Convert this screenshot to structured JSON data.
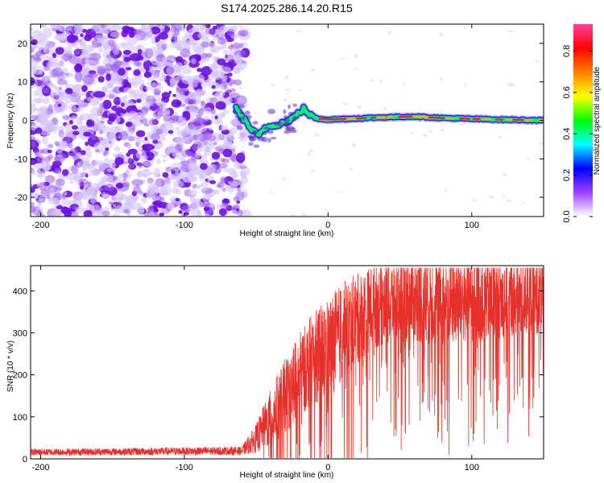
{
  "title": "S174.2025.286.14.20.R15",
  "chart_data": [
    {
      "type": "heatmap",
      "name": "spectrogram",
      "xlabel": "Height of straight line (km)",
      "ylabel": "Frequency (Hz)",
      "xlim": [
        -207,
        150
      ],
      "ylim": [
        -25,
        25
      ],
      "x_ticks": [
        {
          "value": -200,
          "label": "-200"
        },
        {
          "value": -100,
          "label": "-100"
        },
        {
          "value": 0,
          "label": "0"
        },
        {
          "value": 100,
          "label": "100"
        }
      ],
      "y_ticks": [
        {
          "value": 20,
          "label": "20"
        },
        {
          "value": 10,
          "label": "10"
        },
        {
          "value": 0,
          "label": "0"
        },
        {
          "value": -10,
          "label": "-10"
        },
        {
          "value": -20,
          "label": "-20"
        }
      ],
      "noise_region_x": [
        -207,
        -62
      ],
      "signal_track": [
        {
          "x": -64,
          "y": 3.0
        },
        {
          "x": -60,
          "y": 1.0
        },
        {
          "x": -56,
          "y": -1.0
        },
        {
          "x": -52,
          "y": -3.0
        },
        {
          "x": -48,
          "y": -4.0
        },
        {
          "x": -44,
          "y": -2.0
        },
        {
          "x": -40,
          "y": -1.5
        },
        {
          "x": -36,
          "y": -1.0
        },
        {
          "x": -30,
          "y": -0.5
        },
        {
          "x": -25,
          "y": 0.5
        },
        {
          "x": -20,
          "y": 2.0
        },
        {
          "x": -17,
          "y": 3.0
        },
        {
          "x": -13,
          "y": 1.5
        },
        {
          "x": -8,
          "y": 0.5
        },
        {
          "x": 0,
          "y": 0.2
        },
        {
          "x": 20,
          "y": 0.5
        },
        {
          "x": 40,
          "y": 0.8
        },
        {
          "x": 60,
          "y": 1.0
        },
        {
          "x": 80,
          "y": 0.6
        },
        {
          "x": 100,
          "y": 0.4
        },
        {
          "x": 120,
          "y": 0.2
        },
        {
          "x": 150,
          "y": 0.0
        }
      ],
      "colorbar": {
        "label": "Normalized spectral amplitude",
        "range": [
          0,
          0.93
        ],
        "ticks": [
          {
            "value": 0.0,
            "label": "0.0"
          },
          {
            "value": 0.2,
            "label": "0.2"
          },
          {
            "value": 0.4,
            "label": "0.4"
          },
          {
            "value": 0.6,
            "label": "0.6"
          },
          {
            "value": 0.8,
            "label": "0.8"
          }
        ],
        "stops": [
          "#ffffff",
          "#a040ff",
          "#0000ff",
          "#00ffff",
          "#00ff00",
          "#ffff00",
          "#ff8000",
          "#ff0000",
          "#ff40a0"
        ]
      }
    },
    {
      "type": "line",
      "name": "snr",
      "xlabel": "Height of straight line (km)",
      "ylabel": "SNR (10 * v/v)",
      "xlim": [
        -207,
        150
      ],
      "ylim": [
        0,
        460
      ],
      "color": "#e8302a",
      "x_ticks": [
        {
          "value": -200,
          "label": "-200"
        },
        {
          "value": -100,
          "label": "-100"
        },
        {
          "value": 0,
          "label": "0"
        },
        {
          "value": 100,
          "label": "100"
        }
      ],
      "y_ticks": [
        {
          "value": 0,
          "label": "0"
        },
        {
          "value": 100,
          "label": "100"
        },
        {
          "value": 200,
          "label": "200"
        },
        {
          "value": 300,
          "label": "300"
        },
        {
          "value": 400,
          "label": "400"
        }
      ],
      "envelope": [
        {
          "x": -207,
          "mean": 15,
          "amp": 8
        },
        {
          "x": -60,
          "mean": 18,
          "amp": 10
        },
        {
          "x": -50,
          "mean": 45,
          "amp": 35
        },
        {
          "x": -40,
          "mean": 90,
          "amp": 70
        },
        {
          "x": -30,
          "mean": 140,
          "amp": 90
        },
        {
          "x": -20,
          "mean": 190,
          "amp": 100
        },
        {
          "x": -10,
          "mean": 230,
          "amp": 110
        },
        {
          "x": 0,
          "mean": 250,
          "amp": 120
        },
        {
          "x": 10,
          "mean": 290,
          "amp": 120
        },
        {
          "x": 20,
          "mean": 320,
          "amp": 110
        },
        {
          "x": 30,
          "mean": 350,
          "amp": 100
        },
        {
          "x": 50,
          "mean": 370,
          "amp": 100
        },
        {
          "x": 80,
          "mean": 365,
          "amp": 110
        },
        {
          "x": 110,
          "mean": 370,
          "amp": 100
        },
        {
          "x": 150,
          "mean": 380,
          "amp": 90
        }
      ]
    }
  ]
}
